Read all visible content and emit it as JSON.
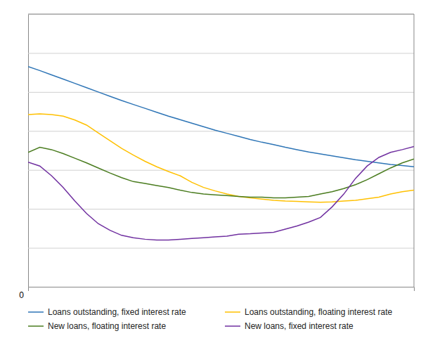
{
  "chart_data": {
    "type": "line",
    "categories": [
      null,
      null,
      null,
      null,
      null,
      null,
      null,
      null,
      null,
      null,
      null,
      null,
      null,
      null,
      null,
      null,
      null,
      null,
      null,
      null,
      null,
      null,
      null,
      null,
      null,
      null,
      null,
      null,
      null,
      null,
      null,
      null,
      null,
      null
    ],
    "series": [
      {
        "name": "Loans outstanding, fixed interest rate",
        "color": "#2e75b6",
        "values": [
          5.65,
          5.55,
          5.44,
          5.33,
          5.22,
          5.11,
          5.0,
          4.89,
          4.78,
          4.68,
          4.58,
          4.48,
          4.38,
          4.29,
          4.2,
          4.11,
          4.02,
          3.94,
          3.86,
          3.78,
          3.71,
          3.65,
          3.58,
          3.52,
          3.46,
          3.41,
          3.36,
          3.31,
          3.26,
          3.22,
          3.18,
          3.14,
          3.11,
          3.08
        ]
      },
      {
        "name": "Loans outstanding, floating interest rate",
        "color": "#ffc000",
        "values": [
          4.42,
          4.44,
          4.42,
          4.38,
          4.28,
          4.15,
          3.95,
          3.75,
          3.55,
          3.38,
          3.22,
          3.08,
          2.96,
          2.85,
          2.68,
          2.55,
          2.46,
          2.38,
          2.32,
          2.28,
          2.25,
          2.22,
          2.2,
          2.19,
          2.18,
          2.17,
          2.18,
          2.2,
          2.22,
          2.26,
          2.3,
          2.38,
          2.44,
          2.48
        ]
      },
      {
        "name": "New loans, floating interest rate",
        "color": "#4a7c1f",
        "values": [
          3.45,
          3.58,
          3.52,
          3.42,
          3.3,
          3.18,
          3.05,
          2.92,
          2.8,
          2.7,
          2.65,
          2.6,
          2.55,
          2.48,
          2.42,
          2.38,
          2.36,
          2.34,
          2.32,
          2.3,
          2.3,
          2.28,
          2.28,
          2.3,
          2.32,
          2.38,
          2.44,
          2.52,
          2.62,
          2.75,
          2.9,
          3.05,
          3.18,
          3.28
        ]
      },
      {
        "name": "New loans, fixed interest rate",
        "color": "#7030a0",
        "values": [
          3.2,
          3.1,
          2.85,
          2.55,
          2.2,
          1.88,
          1.62,
          1.45,
          1.32,
          1.26,
          1.22,
          1.2,
          1.2,
          1.22,
          1.24,
          1.26,
          1.28,
          1.3,
          1.35,
          1.36,
          1.38,
          1.4,
          1.48,
          1.56,
          1.66,
          1.78,
          2.05,
          2.38,
          2.78,
          3.1,
          3.32,
          3.45,
          3.52,
          3.6
        ]
      }
    ],
    "ylim": [
      0,
      7
    ],
    "yticks": [
      0,
      1,
      2,
      3,
      4,
      5,
      6,
      7
    ],
    "grid": true,
    "legend": "bottom",
    "tick_labels": false,
    "annotations": [
      {
        "text": "0"
      }
    ]
  }
}
